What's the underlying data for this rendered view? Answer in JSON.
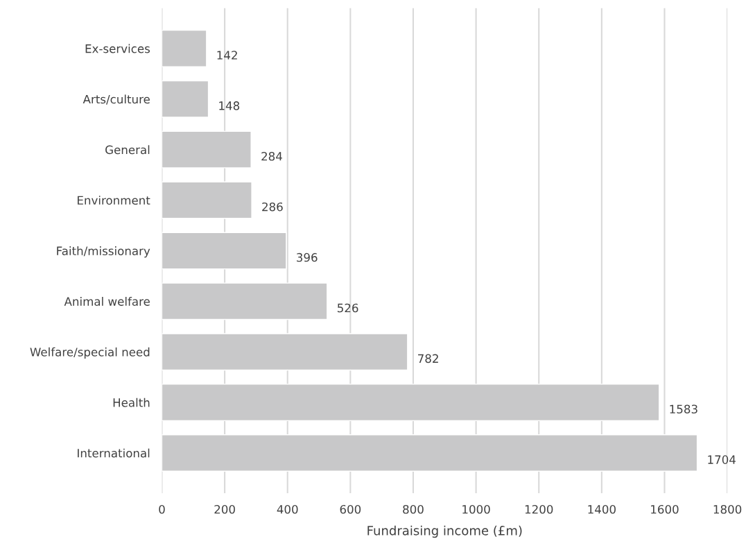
{
  "chart_data": {
    "type": "bar",
    "orientation": "horizontal",
    "xlabel": "Fundraising income (£m)",
    "categories": [
      "Ex-services",
      "Arts/culture",
      "General",
      "Environment",
      "Faith/missionary",
      "Animal welfare",
      "Welfare/special need",
      "Health",
      "International"
    ],
    "values": [
      142,
      148,
      284,
      286,
      396,
      526,
      782,
      1583,
      1704
    ],
    "color": "#c8c8c9",
    "xlim": [
      0,
      1800
    ],
    "xticks": [
      0,
      200,
      400,
      600,
      800,
      1000,
      1200,
      1400,
      1600,
      1800
    ],
    "grid": "x",
    "data_labels": true
  }
}
